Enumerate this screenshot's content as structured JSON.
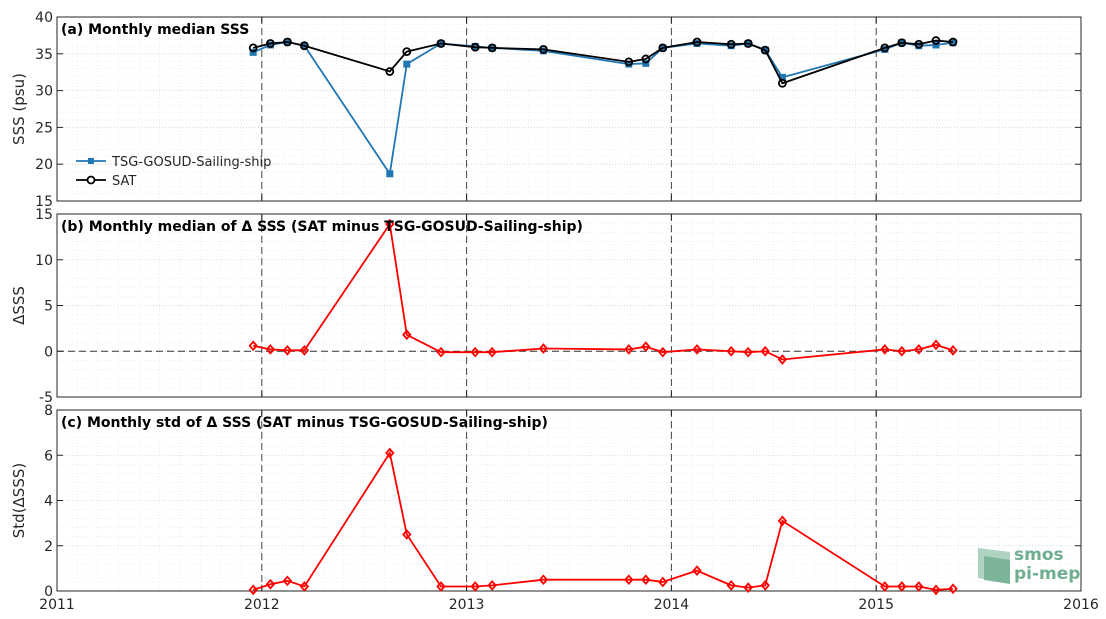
{
  "colors": {
    "tsg": "#1f77b4",
    "sat": "#000000",
    "delta": "#ff0000",
    "logo": "#6fae8f"
  },
  "logo": {
    "line1": "smos",
    "line2": "pi-mep"
  },
  "chart_data": [
    {
      "type": "line",
      "title": "(a) Monthly median SSS",
      "ylabel": "SSS (psu)",
      "xlim": [
        2011,
        2016
      ],
      "ylim": [
        15,
        40
      ],
      "yticks": [
        15,
        20,
        25,
        30,
        35,
        40
      ],
      "grid": true,
      "legend": "middle-left",
      "x": [
        2011.958,
        2012.042,
        2012.125,
        2012.208,
        2012.625,
        2012.708,
        2012.875,
        2013.042,
        2013.125,
        2013.375,
        2013.792,
        2013.875,
        2013.958,
        2014.125,
        2014.292,
        2014.375,
        2014.458,
        2014.542,
        2015.042,
        2015.125,
        2015.208,
        2015.292,
        2015.375
      ],
      "series": [
        {
          "name": "TSG-GOSUD-Sailing-ship",
          "color": "#1f77b4",
          "marker": "square",
          "values": [
            35.2,
            36.2,
            36.6,
            36.1,
            18.7,
            33.6,
            36.4,
            36.0,
            35.8,
            35.4,
            33.6,
            33.7,
            35.8,
            36.4,
            36.1,
            36.4,
            35.5,
            31.8,
            35.6,
            36.5,
            36.1,
            36.2,
            36.5
          ]
        },
        {
          "name": "SAT",
          "color": "#000000",
          "marker": "circle",
          "values": [
            35.8,
            36.4,
            36.6,
            36.1,
            32.6,
            35.3,
            36.4,
            35.9,
            35.8,
            35.6,
            33.9,
            34.3,
            35.8,
            36.6,
            36.3,
            36.4,
            35.5,
            31.0,
            35.8,
            36.5,
            36.3,
            36.8,
            36.6
          ]
        }
      ]
    },
    {
      "type": "line",
      "title": "(b) Monthly median of Δ SSS (SAT minus TSG-GOSUD-Sailing-ship)",
      "ylabel": "ΔSSS",
      "xlim": [
        2011,
        2016
      ],
      "ylim": [
        -5,
        15
      ],
      "yticks": [
        -5,
        0,
        5,
        10,
        15
      ],
      "grid": true,
      "reference_line": 0,
      "x": [
        2011.958,
        2012.042,
        2012.125,
        2012.208,
        2012.625,
        2012.708,
        2012.875,
        2013.042,
        2013.125,
        2013.375,
        2013.792,
        2013.875,
        2013.958,
        2014.125,
        2014.292,
        2014.375,
        2014.458,
        2014.542,
        2015.042,
        2015.125,
        2015.208,
        2015.292,
        2015.375
      ],
      "series": [
        {
          "name": "",
          "color": "#ff0000",
          "marker": "diamond",
          "values": [
            0.6,
            0.2,
            0.1,
            0.1,
            13.9,
            1.8,
            -0.1,
            -0.1,
            -0.1,
            0.3,
            0.2,
            0.5,
            -0.1,
            0.2,
            0.0,
            -0.1,
            0.0,
            -0.9,
            0.2,
            0.0,
            0.2,
            0.7,
            0.1
          ]
        }
      ]
    },
    {
      "type": "line",
      "title": "(c) Monthly std of Δ SSS (SAT minus TSG-GOSUD-Sailing-ship)",
      "ylabel": "Std(ΔSSS)",
      "xlim": [
        2011,
        2016
      ],
      "ylim": [
        0,
        8
      ],
      "yticks": [
        0,
        2,
        4,
        6,
        8
      ],
      "xticks": [
        2011,
        2012,
        2013,
        2014,
        2015,
        2016
      ],
      "grid": true,
      "x": [
        2011.958,
        2012.042,
        2012.125,
        2012.208,
        2012.625,
        2012.708,
        2012.875,
        2013.042,
        2013.125,
        2013.375,
        2013.792,
        2013.875,
        2013.958,
        2014.125,
        2014.292,
        2014.375,
        2014.458,
        2014.542,
        2015.042,
        2015.125,
        2015.208,
        2015.292,
        2015.375
      ],
      "series": [
        {
          "name": "",
          "color": "#ff0000",
          "marker": "diamond",
          "values": [
            0.05,
            0.3,
            0.45,
            0.2,
            6.1,
            2.5,
            0.2,
            0.2,
            0.25,
            0.5,
            0.5,
            0.5,
            0.4,
            0.9,
            0.25,
            0.15,
            0.25,
            3.1,
            0.2,
            0.2,
            0.2,
            0.05,
            0.1
          ]
        }
      ]
    }
  ]
}
